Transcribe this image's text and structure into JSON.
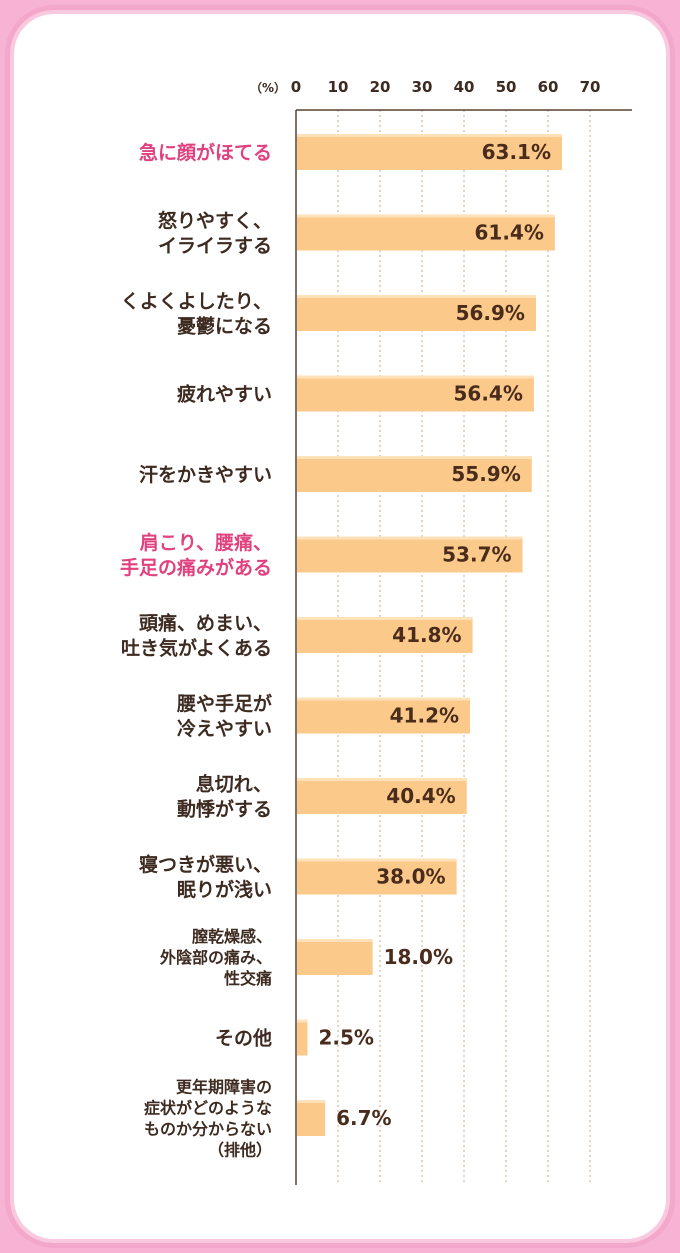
{
  "chart_data": {
    "type": "bar",
    "orientation": "horizontal",
    "unit_label": "（%）",
    "xlim": [
      0,
      70
    ],
    "xticks": [
      0,
      10,
      20,
      30,
      40,
      50,
      60,
      70
    ],
    "grid": "vertical dotted",
    "bar_color": "#fbc98a",
    "highlight_color": "#e0417f",
    "categories": [
      {
        "lines": [
          "急に顔がほてる"
        ],
        "value": 63.1,
        "label": "63.1%",
        "highlight": true
      },
      {
        "lines": [
          "怒りやすく、",
          "イライラする"
        ],
        "value": 61.4,
        "label": "61.4%",
        "highlight": false
      },
      {
        "lines": [
          "くよくよしたり、",
          "憂鬱になる"
        ],
        "value": 56.9,
        "label": "56.9%",
        "highlight": false
      },
      {
        "lines": [
          "疲れやすい"
        ],
        "value": 56.4,
        "label": "56.4%",
        "highlight": false
      },
      {
        "lines": [
          "汗をかきやすい"
        ],
        "value": 55.9,
        "label": "55.9%",
        "highlight": false
      },
      {
        "lines": [
          "肩こり、腰痛、",
          "手足の痛みがある"
        ],
        "value": 53.7,
        "label": "53.7%",
        "highlight": true
      },
      {
        "lines": [
          "頭痛、めまい、",
          "吐き気がよくある"
        ],
        "value": 41.8,
        "label": "41.8%",
        "highlight": false
      },
      {
        "lines": [
          "腰や手足が",
          "冷えやすい"
        ],
        "value": 41.2,
        "label": "41.2%",
        "highlight": false
      },
      {
        "lines": [
          "息切れ、",
          "動悸がする"
        ],
        "value": 40.4,
        "label": "40.4%",
        "highlight": false
      },
      {
        "lines": [
          "寝つきが悪い、",
          "眠りが浅い"
        ],
        "value": 38.0,
        "label": "38.0%",
        "highlight": false
      },
      {
        "lines": [
          "膣乾燥感、",
          "外陰部の痛み、",
          "性交痛"
        ],
        "value": 18.0,
        "label": "18.0%",
        "highlight": false
      },
      {
        "lines": [
          "その他"
        ],
        "value": 2.5,
        "label": "2.5%",
        "highlight": false
      },
      {
        "lines": [
          "更年期障害の",
          "症状がどのような",
          "ものか分からない",
          "（排他）"
        ],
        "value": 6.7,
        "label": "6.7%",
        "highlight": false
      }
    ]
  }
}
